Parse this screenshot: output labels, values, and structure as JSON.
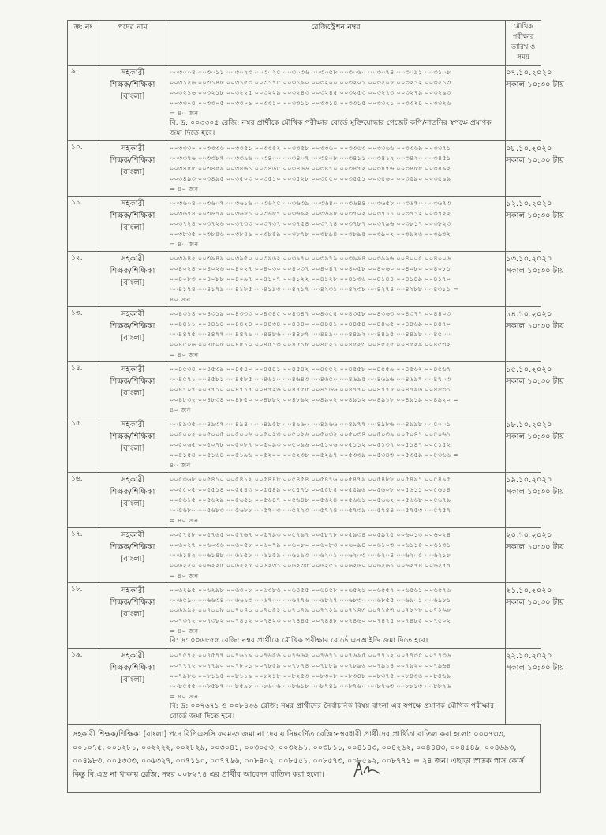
{
  "header": {
    "serial": "ক্র: নং",
    "post": "পদের নাম",
    "reg": "রেজিস্ট্রেশন নম্বর",
    "date": "মৌখিক পরীক্ষার তারিখ ও সময়"
  },
  "rows": [
    {
      "serial": "৯.",
      "post": [
        "সহকারী",
        "শিক্ষক/শিক্ষিকা",
        "[বাংলা]"
      ],
      "lines": [
        "০০৩০০৪ ০০৩০১১ ০০৩০২৩ ০০৩০২৫ ০০৩০৩৬ ০০৩০৫৮ ০০৩০৬০ ০০৩০৭৪ ০০৩০৯১ ০০৩১০৮",
        "০০৩১২৬ ০০৩১৪৮ ০০৩১৫৩ ০০৩১৭৫ ০০৩১৯০ ০০৩২০০ ০০৩২০১ ০০৩২০৮ ০০৩২১২ ০০৩২১৩",
        "০০৩২১৬ ০০৩২১৮ ০০৩২২৫ ০০৩২২৯ ০০৩২৪৩ ০০৩২৪৫ ০০৩২৫৩ ০০৩২৭৩ ০০৩২৭৯ ০০৩২৯৩",
        "০০৩৩০৪ ০০৩৩০৫ ০০৩৩০৯ ০০৩৩১০ ০০৩৩১১ ০০৩৩১৪ ০০৩৩১৫ ০০৩৩২১ ০০৩৩২৪ ০০৩৩২৬"
      ],
      "total": "= ৪০ জন",
      "note": "বি. দ্র. ০০৩৩০৫ রেজি: নম্বর প্রার্থীকে মৌখিক পরীক্ষার বোর্ডে মুক্তিযোদ্ধার গেজেট কপি/নাতনির স্বপক্ষে প্রমাণক জমা দিতে হবে।",
      "date": "০৭.১০.২০২০",
      "time": "সকাল ১০:৩০ টায়"
    },
    {
      "serial": "১০.",
      "post": [
        "সহকারী",
        "শিক্ষক/শিক্ষিকা",
        "[বাংলা]"
      ],
      "lines": [
        "০০৩৩৩০ ০০৩৩৩৬ ০০৩৩৫১ ০০৩৩৫২ ০০৩৩৫৮ ০০৩৩৬০ ০০৩৩৬৩ ০০৩৩৬৬ ০০৩৩৬৯ ০০৩৩৭১",
        "০০৩৩৭৬ ০০৩৩৮৭ ০০৩৩৯৬ ০০৩৪০০ ০০৩৪০৭ ০০৩৪০৮ ০০৩৪১১ ০০৩৪১২ ০০৩৪২০ ০০৩৪৫১",
        "০০৩৪৫৫ ০০৩৪৫৯ ০০৩৪৬১ ০০৩৪৬৫ ০০৩৪৬৬ ০০৩৪৭০ ০০৩৪৭২ ০০৩৪৭৬ ০০৩৪৮৮ ০০৩৪৯২",
        "০০৩৪৯৩ ০০৩৪৯৫ ০০৩৫০৩ ০০৩৫১০ ০০৩৫২৮ ০০৩৫৫০ ০০৩৫৫১ ০০৩৫৬০ ০০৩৫৯০ ০০৩৫৯৯"
      ],
      "total": "= ৪০ জন",
      "date": "০৮.১০.২০২০",
      "time": "সকাল ১০:৩০ টায়"
    },
    {
      "serial": "১১.",
      "post": [
        "সহকারী",
        "শিক্ষক/শিক্ষিকা",
        "[বাংলা]"
      ],
      "lines": [
        "০০৩৬০৪ ০০৩৬০৭ ০০৩৬১৬ ০০৩৬২৫ ০০৩৬৩৯ ০০৩৬৪০ ০০৩৬৪৪ ০০৩৬৫৮ ০০৩৬৭০ ০০৩৬৭৩",
        "০০৩৬৭৪ ০০৩৬৭৯ ০০৩৬৮১ ০০৩৬৮৭ ০০৩৬৯২ ০০৩৬৯৮ ০০৩৭০২ ০০৩৭১১ ০০৩৭১২ ০০৩৭২২",
        "০০৩৭২৪ ০০৩৭২৬ ০০৩৭৩৩ ০০৩৭৩৭ ০০৩৭৫৪ ০০৩৭৭৪ ০০৩৭৮৭ ০০৩৭৯৬ ০০৩৮১৭ ০০৩৮২৩",
        "০০৩৮৩৫ ০০৩৮৪৬ ০০৩৮৪৯ ০০৩৮৫৯ ০০৩৮৭৮ ০০৩৮৯৪ ০০৩৮৯৫ ০০৩৯০২ ০০৩৯২৬ ০০৩৯৩২"
      ],
      "total": "= ৪০ জন",
      "date": "১২.১০.২০২০",
      "time": "সকাল ১০:৩০ টায়"
    },
    {
      "serial": "১২.",
      "post": [
        "সহকারী",
        "শিক্ষক/শিক্ষিকা",
        "[বাংলা]"
      ],
      "lines": [
        "০০৩৯৪২ ০০৩৯৪৯ ০০৩৯৫০ ০০৩৯৬২ ০০৩৯৭০ ০০৩৯৭৯ ০০৩৯৯৪ ০০৩৯৯৬ ০০৪০০৫ ০০৪০০৬",
        "০০৪০২৪ ০০৪০২৬ ০০৪০২৭ ০০৪০৩০ ০০৪০৩৭ ০০৪০৪৭ ০০৪০৫৮ ০০৪০৬০ ০০৪০৮০ ০০৪০৮১",
        "০০৪০৮৩ ০০৪০৮৮ ০০৪০৯৭ ০০৪১০৭ ০০৪১২২ ০০৪১২৮ ০০৪১৩৬ ০০৪১৪৪ ০০৪১৪৯ ০০৪১৭০",
        "০০৪১৭৪ ০০৪১৭৯ ০০৪১৮৫ ০০৪১৯৩ ০০৪২১৭ ০০৪২৩১ ০০৪২৩৮ ০০৪২৭৪ ০০৪২৮৮ ০০৪৩১১ ="
      ],
      "total": "৪০ জন",
      "date": "১৩.১০.২০২০",
      "time": "সকাল ১০:৩০ টায়"
    },
    {
      "serial": "১৩.",
      "post": [
        "সহকারী",
        "শিক্ষক/শিক্ষিকা",
        "[বাংলা]"
      ],
      "lines": [
        "০০৪৩১৪ ০০৪৩১৯ ০০৪৩৩৩ ০০৪৩৪৫ ০০৪৩৪৭ ০০৪৩৫৫ ০০৪৩৫৮ ০০৪৩৬৩ ০০৪৩৭৭ ০০৪৪০৩",
        "০০৪৪১১ ০০৪৪১৪ ০০৪৪২৪ ০০৪৪৩৪ ০০৪৪৪০ ০০৪৪৪১ ০০৪৪৫৪ ০০৪৪৬৫ ০০৪৪৬৯ ০০৪৪৭০",
        "০০৪৪৭৫ ০০৪৪৭৭ ০০৪৪৭৯ ০০৪৪৮৬ ০০৪৪৮৭ ০০৪৪৯০ ০০৪৪৯২ ০০৪৪৯৫ ০০৪৪৯৮ ০০৪৫০০",
        "০০৪৫০৬ ০০৪৫০৮ ০০৪৫১০ ০০৪৫১৩ ০০৪৫১৮ ০০৪৫২১ ০০৪৫২৩ ০০৪৫২৫ ০০৪৫২৯ ০০৪৫৩২"
      ],
      "total": "= ৪০ জন",
      "date": "১৪.১০.২০২০",
      "time": "সকাল ১০:৩০ টায়"
    },
    {
      "serial": "১৪.",
      "post": [
        "সহকারী",
        "শিক্ষক/শিক্ষিকা",
        "[বাংলা]"
      ],
      "lines": [
        "০০৪৫৩৪ ০০৪৫৩৯ ০০৪৫৪০ ০০৪৫৪১ ০০৪৫৪২ ০০৪৫৫২ ০০৪৫৫৮ ০০৪৫৫৯ ০০৪৫৬২ ০০৪৫৬৭",
        "০০৪৫৭১ ০০৪৫৮১ ০০৪৫৮৫ ০০৪৬১০ ০০৪৬৪৩ ০০৪৬৫০ ০০৪৬৯৫ ০০৪৬৯৬ ০০৪৬৯৭ ০০৪৭০৩",
        "০০৪৭০৭ ০০৪৭১০ ০০৪৭১৭ ০০৪৭২৬ ০০৪৭৫৫ ০০৪৭৬৬ ০০৪৭৭০ ০০৪৭৭৮ ০০৪৭৯৬ ০০৪৮৩১",
        "০০৪৮৩২ ০০৪৮৩৪ ০০৪৮৫০ ০০৪৮৮২ ০০৪৮৯২ ০০৪৯০২ ০০৪৯১২ ০০৪৯১৮ ০০৪৯১৯ ০০৪৯২০ ="
      ],
      "total": "৪০ জন",
      "date": "১৫.১০.২০২০",
      "time": "সকাল ১০:৩০ টায়"
    },
    {
      "serial": "১৫.",
      "post": [
        "সহকারী",
        "শিক্ষক/শিক্ষিকা",
        "[বাংলা]"
      ],
      "lines": [
        "০০৪৯৩৫ ০০৪৯৩৭ ০০৪৯৪০ ০০৪৯৫৮ ০০৪৯৬০ ০০৪৯৬৬ ০০৪৯৭৭ ০০৪৯৮৬ ০০৪৯৯৮ ০০৫০০১",
        "০০৫০০২ ০০৫০০৫ ০০৫০০৬ ০০৫০২৩ ০০৫০২৬ ০০৫০৩২ ০০৫০৩৪ ০০৫০৩৯ ০০৫০৪১ ০০৫০৬১",
        "০০৫০৬৫ ০০৫০৭৮ ০০৫০৮৭ ০০৫০৯৩ ০০৫০৯৬ ০০৫১০৬ ০০৫১১২ ০০৫১৩৭ ০০৫১৪৭ ০০৫১৫২",
        "০০৫১৫৪ ০০৫১৬৪ ০০৫১৯৬ ০০৫২০০ ০০৫২৩৮ ০০৫২৯৭ ০০৫৩৩৯ ০০৫৩৪৩ ০০৫৩৫৯ ০০৫৩৬৬ ="
      ],
      "total": "৪০ জন",
      "date": "১৮.১০.২০২০",
      "time": "সকাল ১০:৩০ টায়"
    },
    {
      "serial": "১৬.",
      "post": [
        "সহকারী",
        "শিক্ষক/শিক্ষিকা",
        "[বাংলা]"
      ],
      "lines": [
        "০০৫৩৬৮ ০০৫৪১০ ০০৫৪১২ ০০৫৪৪৮ ০০৫৪৫৪ ০০৫৪৭৬ ০০৫৪৭৯ ০০৫৪৮৮ ০০৫৪৯১ ০০৫৪৯৫",
        "০০৫৫০৫ ০০৫৫১৪ ০০৫৫৪৩ ০০৫৫৪৯ ০০৫৫৭১ ০০৫৫৮৫ ০০৫৫৯৬ ০০৫৬০৮ ০০৫৬১১ ০০৫৬১৪",
        "০০৫৬১৫ ০০৫৬২৯ ০০৫৬৫১ ০০৫৬৪৭ ০০৫৬৪৮ ০০৫৬২৪ ০০৫৬৬১ ০০৫৬৬২ ০০৫৬৬৮ ০০৫৬৭৯",
        "০০৫৬৮০ ০০৫৬৮৩ ০০৫৬৮৮ ০০৫৭০৩ ০০৫৭২৩ ০০৫৭২৪ ০০৫৭৩৯ ০০৫৭৪৪ ০০৫৭৫৩ ০০৫৭৫৭"
      ],
      "total": "= ৪০ জন",
      "date": "১৯.১০.২০২০",
      "time": "সকাল ১০:৩০ টায়"
    },
    {
      "serial": "১৭.",
      "post": [
        "সহকারী",
        "শিক্ষক/শিক্ষিকা",
        "[বাংলা]"
      ],
      "lines": [
        "০০৫৭৫৮ ০০৫৭৬৫ ০০৫৭৬৭ ০০৫৭৯৩ ০০৫৭৯৭ ০০৫৮৭৮ ০০৫৯৩৪ ০০৫৯৭৫ ০০৬০১৩ ০০৬০২৪",
        "০০৬০২৭ ০০৬০৩৬ ০০৬০৫৮ ০০৬০৭৯ ০০৬০৮০ ০০৬০৮৩ ০০৬০৯৪ ০০৬১০৩ ০০৬১১৫ ০০৬১৩১",
        "০০৬১৪২ ০০৬১৪৮ ০০৬১৫৮ ০০৬১৫৯ ০০৬১৯৩ ০০৬২০১ ০০৬২০৩ ০০৬২০৪ ০০৬২০৫ ০০৬২১৮",
        "০০৬২২০ ০০৬২২৫ ০০৬২২৮ ০০৬২৩১ ০০৬২৩৫ ০০৬২৫১ ০০৬২৬০ ০০৬২৬১ ০০৬২৭৪ ০০৬২৭৭"
      ],
      "total": "= ৪০ জন",
      "date": "২০.১০.২০২০",
      "time": "সকাল ১০:৩০ টায়"
    },
    {
      "serial": "১৮.",
      "post": [
        "সহকারী",
        "শিক্ষক/শিক্ষিকা",
        "[বাংলা]"
      ],
      "lines": [
        "০০৬২৯৫ ০০৬২৯৮ ০০৬৩০৮ ০০৬৩৮৬ ০০৬৪৫৫ ০০৬৪৫৮ ০০৬৫২১ ০০৬৫৫৭ ০০৬৫৬১ ০০৬৫৭৬",
        "০০৬৫৯০ ০০৬৬৩৪ ০০৬৬৯৩ ০০৬৭০০ ০০৬৭৭৬ ০০৬৮২৭ ০০৬৮৩০ ০০৬৮৫৫ ০০৬৯০১ ০০৬৯৮১",
        "০০৬৯৯২ ০০৭০০৮ ০০৭০৪০ ০০৭০৫২ ০০৭০৭৯ ০০৭১২৯ ০০৭১৪৩ ০০৭১৫৩ ০০৭২১৮ ০০৭২৬৮",
        "০০৭৩৭২ ০০৭৩৮২ ০০৭৪১২ ০০৭৪২৩ ০০৭৪৪৫ ০০৭৪৪৮ ০০৭৪৬০ ০০৭৪৭৫ ০০৭৪৮৫ ০০৭৫০২"
      ],
      "total": "= ৪০ জন",
      "note": "বি: দ্র: ০০৬৮৫৫ রেজি: নম্বর প্রার্থীকে মৌখিক পরীক্ষার বোর্ডে এনআইডি জমা দিতে হবে।",
      "date": "২১.১০.২০২০",
      "time": "সকাল ১০:৩০ টায়"
    },
    {
      "serial": "১৯.",
      "post": [
        "সহকারী",
        "শিক্ষক/শিক্ষিকা",
        "[বাংলা]"
      ],
      "lines": [
        "০০৭৫৭২ ০০৭৫৭৭ ০০৭৬১৯ ০০৭৬৫৬ ০০৭৬৬২ ০০৭৬৭১ ০০৭৬৯৫ ০০৭৭১২ ০০৭৭৩৫ ০০৭৭৩৬",
        "০০৭৭৭২ ০০৭৭৯০ ০০৭৮০১ ০০৭৮৫৯ ০০৭৮৭৪ ০০৭৮৮৯ ০০৭৮৯৬ ০০৭৯১৪ ০০৭৯২০ ০০৭৯৬৪",
        "০০৭৯৮৬ ০০৮১১৫ ০০৮১১৯ ০০৮২১৮ ০০৮২৫৩ ০০৮৩০৮ ০০৮৩৪৮ ০০৮৩৭৫ ০০৮৪৩৬ ০০৮৪৬৯",
        "০০৮৫৫৫ ০০৮৫৮৭ ০০৮৫৯৮ ০০৮৬০৬ ০০৮৬১৮ ০০৮৭৪৯ ০০৮৭৬০ ০০৮৭৬৩ ০০৮৮১৩ ০০৮৮২৬"
      ],
      "total": "= ৪০ জন",
      "note": "বি: দ্র: ০০৭৬৭১ ও ০০৮৪৩৬ রেজি: নম্বর প্রার্থীদের নৈর্বাচনিক বিষয় বাংলা এর স্বপক্ষে প্রমাণক মৌখিক পরীক্ষার বোর্ডে জমা দিতে হবে।",
      "date": "২২.১০.২০২০",
      "time": "সকাল ১০:৩০ টায়"
    }
  ],
  "footer": "সহকারী শিক্ষক/শিক্ষিকা [বাংলা] পদে বিপিএসসি ফরম-৩ জমা না দেয়ায় নিম্নবর্ণিত রেজি:নম্বরধারী প্রার্থীদের প্রার্থিতা বাতিল করা হলো: ০০০৭৩৩, ০০১০৭৫, ০০১২৮১, ০০২২২২, ০০২৮২৯, ০০৩০৪১, ০০৩০৫৩, ০০৩২৯১, ০০৩৮১১, ০০৪১৪৩, ০০৪২৬২, ০০৪৪৪৩, ০০৪৫৪৯, ০০৪৬৯৩, ০০৪৯৮৩, ০০৫৩৩৩, ০০৬৩২৭, ০০৭১১০, ০০৭৭৬৬, ০০৮৪০২, ০০৮৫৫১, ০০৮৫৭৩, ০০৮৫৯২, ০০৮৭৭১ = ২৪ জন। এছাড়া স্নাতক পাস কোর্স কিন্তু বি.এড না থাকায় রেজি: নম্বর ০০৮২৭৪ এর প্রার্থীর আবেদন বাতিল করা হলো।"
}
